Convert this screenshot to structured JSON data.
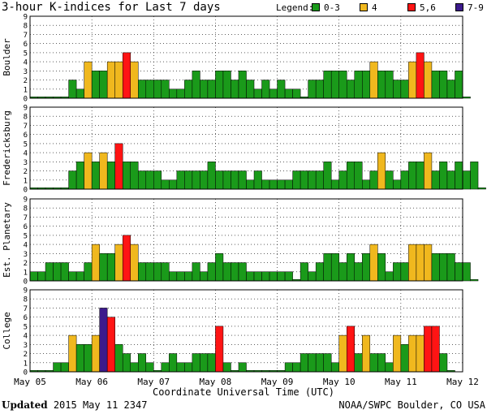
{
  "header": {
    "title": "3-hour K-indices for Last 7 days",
    "legend_label": "Legend:",
    "legend": [
      {
        "label": "0-3",
        "color": "#1a9a1a"
      },
      {
        "label": "4",
        "color": "#f0b81e"
      },
      {
        "label": "5,6",
        "color": "#ff1414"
      },
      {
        "label": "7-9",
        "color": "#3c1a8c"
      }
    ]
  },
  "footer": {
    "updated_label": "Updated",
    "updated_value": "2015 May 11 2347",
    "credit": "NOAA/SWPC Boulder, CO USA"
  },
  "chart_data": {
    "type": "bar",
    "xlabel": "Coordinate Universal Time (UTC)",
    "ylabel": "",
    "ylim": [
      0,
      9
    ],
    "y_ticks": [
      "0",
      "1",
      "2",
      "3",
      "4",
      "5",
      "6",
      "7",
      "8",
      "9"
    ],
    "x_ticks": [
      "May 05",
      "May 06",
      "May 07",
      "May 08",
      "May 09",
      "May 10",
      "May 11",
      "May 12"
    ],
    "bar_interval": "3 hours",
    "grid": true,
    "series": [
      {
        "name": "Boulder",
        "values": [
          0,
          0,
          0,
          0,
          0,
          2,
          1,
          4,
          3,
          3,
          4,
          4,
          5,
          4,
          2,
          2,
          2,
          2,
          1,
          1,
          2,
          3,
          2,
          2,
          3,
          3,
          2,
          3,
          2,
          1,
          2,
          1,
          2,
          1,
          1,
          0,
          2,
          2,
          3,
          3,
          3,
          2,
          3,
          3,
          4,
          3,
          3,
          2,
          2,
          4,
          5,
          4,
          3,
          3,
          2,
          3,
          0
        ]
      },
      {
        "name": "Fredericksburg",
        "values": [
          0,
          0,
          0,
          0,
          0,
          2,
          3,
          4,
          3,
          4,
          3,
          5,
          3,
          3,
          2,
          2,
          2,
          1,
          1,
          2,
          2,
          2,
          2,
          3,
          2,
          2,
          2,
          2,
          1,
          2,
          1,
          1,
          1,
          1,
          2,
          2,
          2,
          2,
          3,
          1,
          2,
          3,
          3,
          1,
          2,
          4,
          2,
          1,
          2,
          3,
          3,
          4,
          2,
          3,
          2,
          3,
          2,
          3,
          0
        ]
      },
      {
        "name": "Est. Planetary",
        "values": [
          1,
          1,
          2,
          2,
          2,
          1,
          1,
          2,
          4,
          3,
          3,
          4,
          5,
          4,
          2,
          2,
          2,
          2,
          1,
          1,
          1,
          2,
          1,
          2,
          3,
          2,
          2,
          2,
          1,
          1,
          1,
          1,
          1,
          1,
          0,
          2,
          1,
          2,
          3,
          3,
          2,
          3,
          2,
          3,
          4,
          3,
          1,
          2,
          2,
          4,
          4,
          4,
          3,
          3,
          3,
          2,
          2,
          0
        ]
      },
      {
        "name": "College",
        "values": [
          0,
          0,
          0,
          1,
          1,
          4,
          3,
          3,
          4,
          7,
          6,
          3,
          2,
          1,
          2,
          1,
          0,
          1,
          2,
          1,
          1,
          2,
          2,
          2,
          5,
          1,
          0,
          1,
          0,
          0,
          0,
          0,
          0,
          1,
          1,
          2,
          2,
          2,
          2,
          1,
          4,
          5,
          2,
          4,
          2,
          2,
          1,
          4,
          3,
          4,
          4,
          5,
          5,
          2,
          0
        ]
      }
    ]
  }
}
